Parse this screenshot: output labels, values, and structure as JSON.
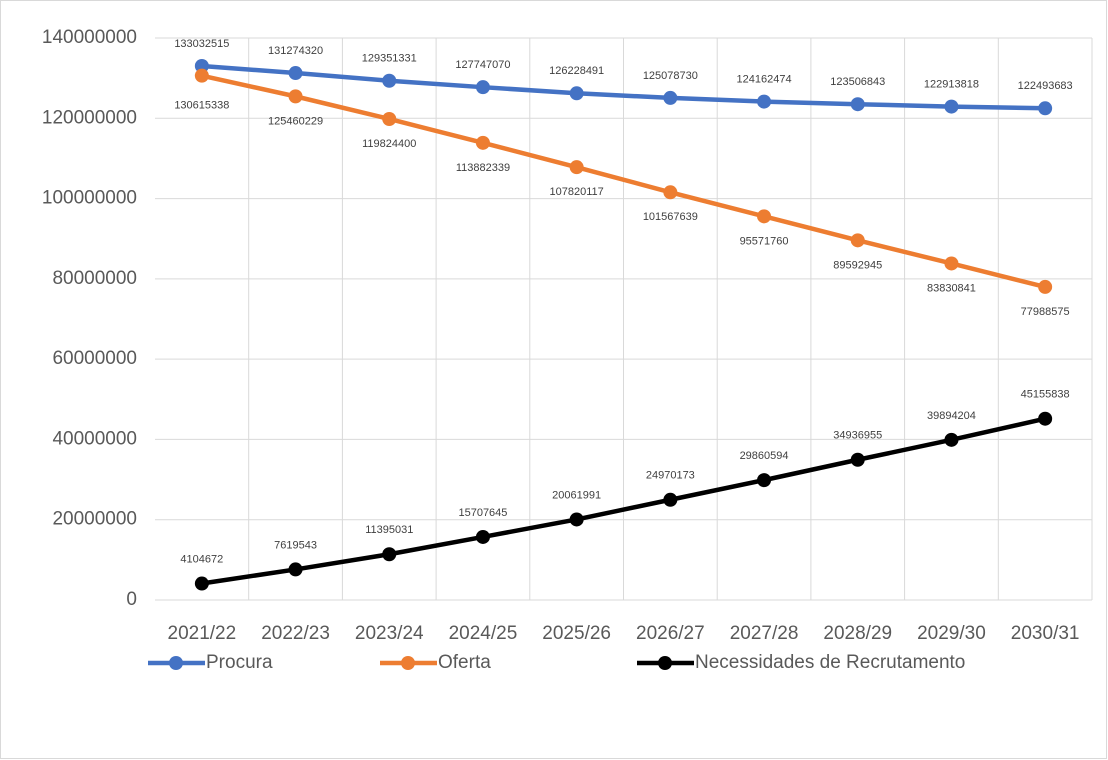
{
  "chart_data": {
    "type": "line",
    "categories": [
      "2021/22",
      "2022/23",
      "2023/24",
      "2024/25",
      "2025/26",
      "2026/27",
      "2027/28",
      "2028/29",
      "2029/30",
      "2030/31"
    ],
    "series": [
      {
        "name": "Procura",
        "color": "#4472c4",
        "values": [
          133032515,
          131274320,
          129351331,
          127747070,
          126228491,
          125078730,
          124162474,
          123506843,
          122913818,
          122493683
        ]
      },
      {
        "name": "Oferta",
        "color": "#ed7d31",
        "values": [
          130615338,
          125460229,
          119824400,
          113882339,
          107820117,
          101567639,
          95571760,
          89592945,
          83830841,
          77988575
        ]
      },
      {
        "name": "Necessidades de Recrutamento",
        "color": "#000000",
        "values": [
          4104672,
          7619543,
          11395031,
          15707645,
          20061991,
          24970173,
          29860594,
          34936955,
          39894204,
          45155838
        ]
      }
    ],
    "ylim": [
      0,
      140000000
    ],
    "yticks": [
      0,
      20000000,
      40000000,
      60000000,
      80000000,
      100000000,
      120000000,
      140000000
    ],
    "grid": true,
    "legend": "bottom"
  }
}
